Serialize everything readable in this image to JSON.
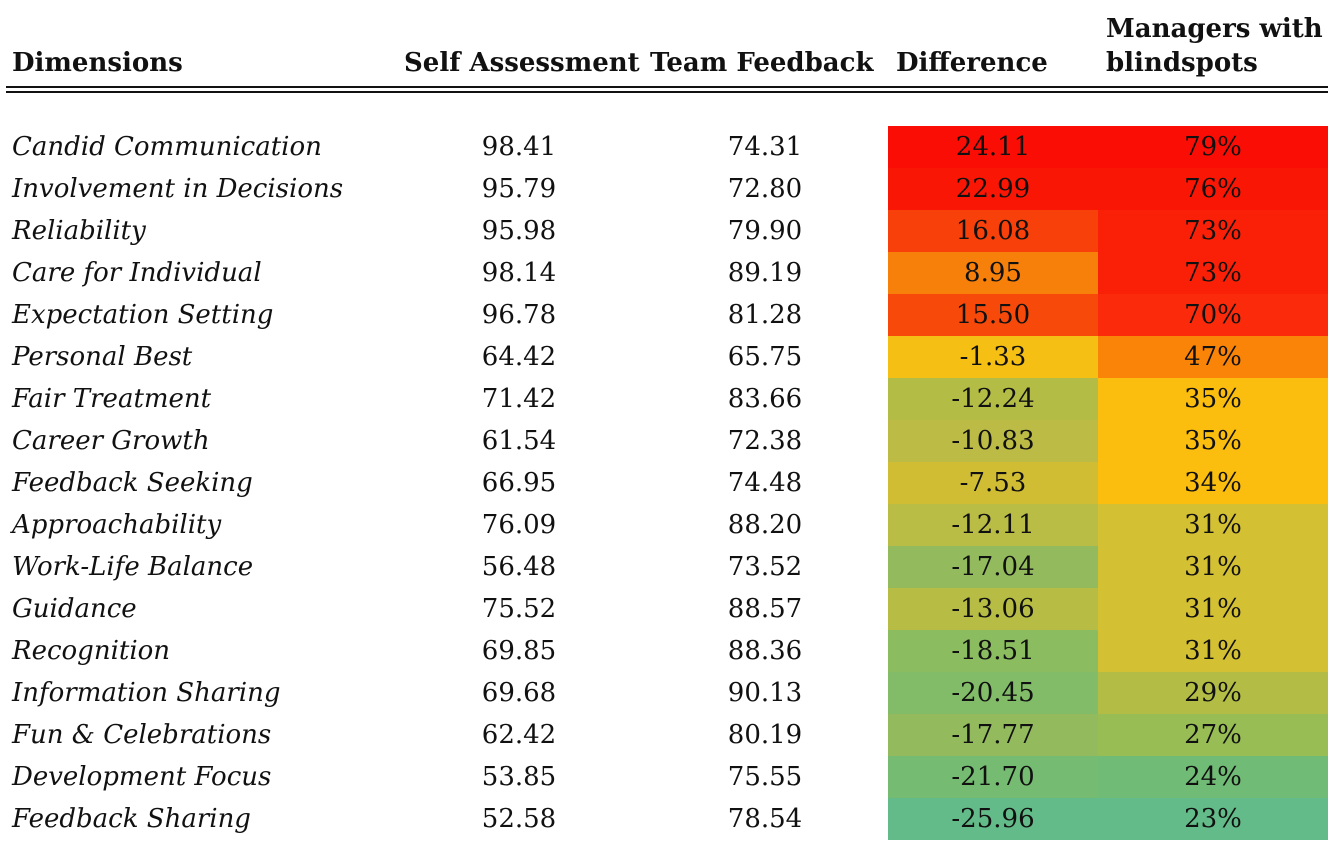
{
  "chart_data": {
    "type": "table",
    "columns": [
      "Dimensions",
      "Self Assessment",
      "Team Feedback",
      "Difference",
      "Managers with blindspots"
    ],
    "header_lines": {
      "managers": [
        "Managers with",
        "blindspots"
      ]
    },
    "rows": [
      {
        "dimension": "Candid Communication",
        "self": "98.41",
        "team": "74.31",
        "diff": "24.11",
        "managers": "79%"
      },
      {
        "dimension": "Involvement in Decisions",
        "self": "95.79",
        "team": "72.80",
        "diff": "22.99",
        "managers": "76%"
      },
      {
        "dimension": "Reliability",
        "self": "95.98",
        "team": "79.90",
        "diff": "16.08",
        "managers": "73%"
      },
      {
        "dimension": "Care for Individual",
        "self": "98.14",
        "team": "89.19",
        "diff": "8.95",
        "managers": "73%"
      },
      {
        "dimension": "Expectation Setting",
        "self": "96.78",
        "team": "81.28",
        "diff": "15.50",
        "managers": "70%"
      },
      {
        "dimension": "Personal Best",
        "self": "64.42",
        "team": "65.75",
        "diff": "-1.33",
        "managers": "47%"
      },
      {
        "dimension": "Fair Treatment",
        "self": "71.42",
        "team": "83.66",
        "diff": "-12.24",
        "managers": "35%"
      },
      {
        "dimension": "Career Growth",
        "self": "61.54",
        "team": "72.38",
        "diff": "-10.83",
        "managers": "35%"
      },
      {
        "dimension": "Feedback Seeking",
        "self": "66.95",
        "team": "74.48",
        "diff": "-7.53",
        "managers": "34%"
      },
      {
        "dimension": "Approachability",
        "self": "76.09",
        "team": "88.20",
        "diff": "-12.11",
        "managers": "31%"
      },
      {
        "dimension": "Work-Life Balance",
        "self": "56.48",
        "team": "73.52",
        "diff": "-17.04",
        "managers": "31%"
      },
      {
        "dimension": "Guidance",
        "self": "75.52",
        "team": "88.57",
        "diff": "-13.06",
        "managers": "31%"
      },
      {
        "dimension": "Recognition",
        "self": "69.85",
        "team": "88.36",
        "diff": "-18.51",
        "managers": "31%"
      },
      {
        "dimension": "Information Sharing",
        "self": "69.68",
        "team": "90.13",
        "diff": "-20.45",
        "managers": "29%"
      },
      {
        "dimension": "Fun & Celebrations",
        "self": "62.42",
        "team": "80.19",
        "diff": "-17.77",
        "managers": "27%"
      },
      {
        "dimension": "Development Focus",
        "self": "53.85",
        "team": "75.55",
        "diff": "-21.70",
        "managers": "24%"
      },
      {
        "dimension": "Feedback Sharing",
        "self": "52.58",
        "team": "78.54",
        "diff": "-25.96",
        "managers": "23%"
      }
    ],
    "heatmap_colors": {
      "diff": [
        "#fa0d05",
        "#fa1605",
        "#f7400a",
        "#f7800a",
        "#f74a0a",
        "#f5c013",
        "#b3bd45",
        "#bbbb45",
        "#d0bd33",
        "#b9bc45",
        "#93bb5e",
        "#b7bc45",
        "#8cbc60",
        "#82bc69",
        "#93bb5e",
        "#75bb71",
        "#62bb88"
      ],
      "managers": [
        "#fa0d05",
        "#fa1605",
        "#fa2008",
        "#fa2008",
        "#fa2a0a",
        "#fa8407",
        "#fbbe0f",
        "#fbbe0f",
        "#fbbe0f",
        "#d4c033",
        "#d4c033",
        "#d4c033",
        "#d4c033",
        "#b3bd45",
        "#98bd55",
        "#70bb75",
        "#62bb88"
      ]
    }
  }
}
